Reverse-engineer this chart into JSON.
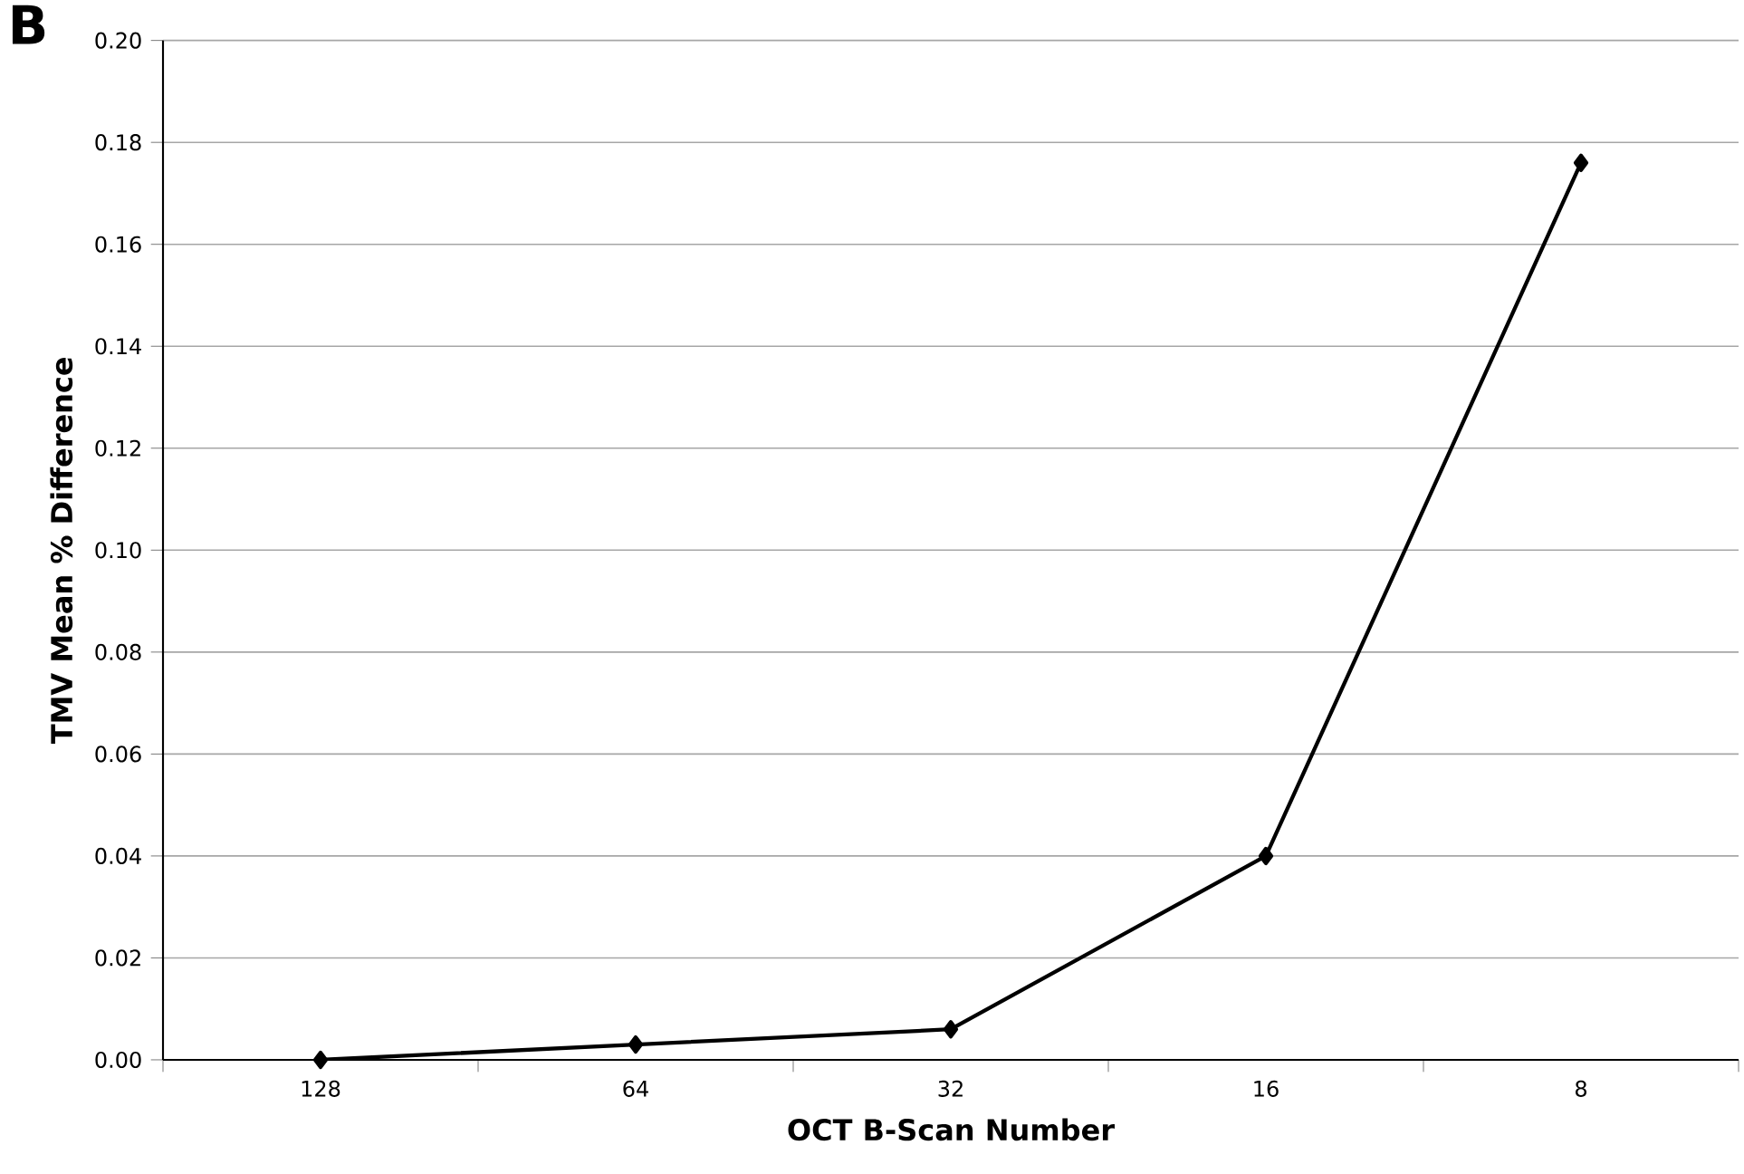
{
  "chart_data": {
    "type": "line",
    "xlabel": "OCT B-Scan Number",
    "ylabel": "TMV Mean % Difference",
    "annotations": [
      "B"
    ],
    "categories": [
      "128",
      "64",
      "32",
      "16",
      "8"
    ],
    "series": [
      {
        "color": "#000000",
        "values": [
          0.0,
          0.003,
          0.006,
          0.04,
          0.176
        ]
      }
    ],
    "ylim": [
      0,
      0.2
    ],
    "yticks": [
      {
        "value": 0,
        "label": "0.00"
      },
      {
        "value": 0.02,
        "label": "0.02"
      },
      {
        "value": 0.04,
        "label": "0.04"
      },
      {
        "value": 0.06,
        "label": "0.06"
      },
      {
        "value": 0.08,
        "label": "0.08"
      },
      {
        "value": 0.1,
        "label": "0.10"
      },
      {
        "value": 0.12,
        "label": "0.12"
      },
      {
        "value": 0.14,
        "label": "0.14"
      },
      {
        "value": 0.16,
        "label": "0.16"
      },
      {
        "value": 0.18,
        "label": "0.18"
      },
      {
        "value": 0.2,
        "label": "0.20"
      }
    ],
    "grid": "y",
    "marker": "diamond",
    "line_style": "solid"
  }
}
